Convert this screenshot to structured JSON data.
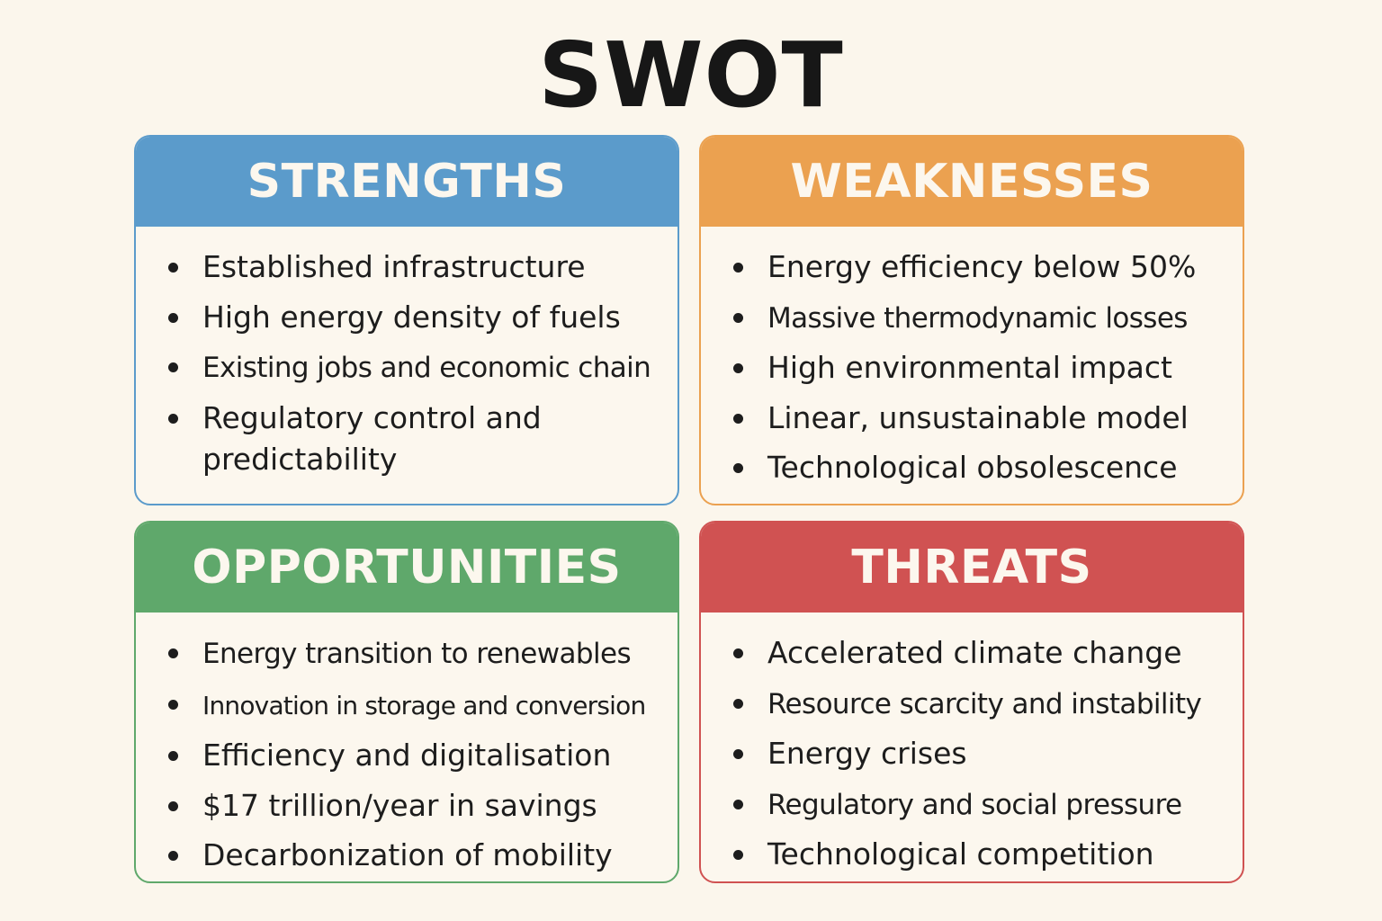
{
  "title": "SWOT",
  "colors": {
    "strengths": "#5b9bcb",
    "weaknesses": "#eba150",
    "opportunities": "#5fa86b",
    "threats": "#d05252",
    "background": "#fbf6ec"
  },
  "quadrants": [
    {
      "key": "strengths",
      "heading": "STRENGTHS",
      "items": [
        "Established infrastructure",
        "High energy density of fuels",
        "Existing jobs and economic chain",
        "Regulatory control and predictability"
      ]
    },
    {
      "key": "weaknesses",
      "heading": "WEAKNESSES",
      "items": [
        "Energy efficiency below 50%",
        "Massive thermodynamic losses",
        "High environmental impact",
        "Linear, unsustainable model",
        "Technological obsolescence"
      ]
    },
    {
      "key": "opportunities",
      "heading": "OPPORTUNITIES",
      "items": [
        "Energy transition to renewables",
        "Innovation in storage and conversion",
        "Efficiency and digitalisation",
        "$17 trillion/year in savings",
        "Decarbonization of mobility"
      ]
    },
    {
      "key": "threats",
      "heading": "THREATS",
      "items": [
        "Accelerated climate change",
        "Resource scarcity and instability",
        "Energy crises",
        "Regulatory and social pressure",
        "Technological competition"
      ]
    }
  ]
}
